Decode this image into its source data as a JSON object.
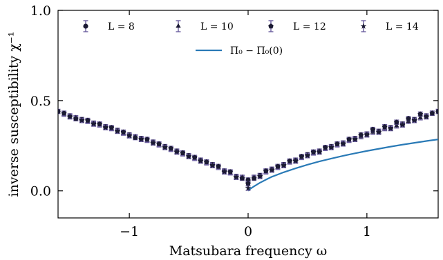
{
  "chart_data": {
    "type": "scatter",
    "xlabel": "Matsubara frequency ω",
    "ylabel": "inverse susceptibility χ⁻¹",
    "xlim": [
      -1.6,
      1.6
    ],
    "ylim": [
      -0.15,
      1.0
    ],
    "x_ticks": [
      {
        "value": -1,
        "label": "−1"
      },
      {
        "value": 0,
        "label": "0"
      },
      {
        "value": 1,
        "label": "1"
      }
    ],
    "y_ticks": [
      {
        "value": 0.0,
        "label": "0.0"
      },
      {
        "value": 0.5,
        "label": "0.5"
      },
      {
        "value": 1.0,
        "label": "1.0"
      }
    ],
    "grid": false,
    "legend_placement": "top",
    "colors": {
      "markers": "#1b1a33",
      "errorbars": "#6a5c9e",
      "line": "#2a7ab6"
    },
    "series": [
      {
        "name": "L = 8",
        "marker": "circle",
        "x": [
          -1.6,
          -1.5,
          -1.4,
          -1.3,
          -1.2,
          -1.1,
          -1.0,
          -0.9,
          -0.8,
          -0.7,
          -0.6,
          -0.5,
          -0.4,
          -0.3,
          -0.2,
          -0.1,
          0.0,
          0.1,
          0.2,
          0.3,
          0.4,
          0.5,
          0.6,
          0.7,
          0.8,
          0.9,
          1.0,
          1.1,
          1.2,
          1.3,
          1.4,
          1.5,
          1.6
        ],
        "y": [
          0.44,
          0.415,
          0.395,
          0.375,
          0.355,
          0.335,
          0.31,
          0.29,
          0.27,
          0.245,
          0.22,
          0.195,
          0.17,
          0.145,
          0.11,
          0.08,
          0.06,
          0.085,
          0.12,
          0.145,
          0.17,
          0.2,
          0.22,
          0.245,
          0.265,
          0.29,
          0.315,
          0.33,
          0.35,
          0.37,
          0.395,
          0.415,
          0.44
        ],
        "err": 0.012
      },
      {
        "name": "L = 10",
        "marker": "triangle",
        "x": [
          -1.55,
          -1.45,
          -1.35,
          -1.25,
          -1.15,
          -1.05,
          -0.95,
          -0.85,
          -0.75,
          -0.65,
          -0.55,
          -0.45,
          -0.35,
          -0.25,
          -0.15,
          -0.05,
          0.05,
          0.15,
          0.25,
          0.35,
          0.45,
          0.55,
          0.65,
          0.75,
          0.85,
          0.95,
          1.05,
          1.15,
          1.25,
          1.35,
          1.45,
          1.55
        ],
        "y": [
          0.425,
          0.405,
          0.385,
          0.365,
          0.345,
          0.32,
          0.3,
          0.28,
          0.255,
          0.23,
          0.205,
          0.18,
          0.155,
          0.13,
          0.1,
          0.075,
          0.075,
          0.105,
          0.13,
          0.16,
          0.185,
          0.21,
          0.235,
          0.255,
          0.28,
          0.3,
          0.325,
          0.345,
          0.36,
          0.385,
          0.405,
          0.43
        ],
        "err": 0.012
      },
      {
        "name": "L = 12",
        "marker": "pentagon",
        "x": [
          -1.55,
          -1.45,
          -1.35,
          -1.25,
          -1.15,
          -1.05,
          -0.95,
          -0.85,
          -0.75,
          -0.65,
          -0.55,
          -0.45,
          -0.35,
          -0.25,
          -0.15,
          -0.05,
          0.0,
          0.05,
          0.15,
          0.25,
          0.35,
          0.45,
          0.55,
          0.65,
          0.75,
          0.85,
          0.95,
          1.05,
          1.15,
          1.25,
          1.35,
          1.45,
          1.55
        ],
        "y": [
          0.43,
          0.4,
          0.39,
          0.37,
          0.35,
          0.325,
          0.295,
          0.285,
          0.26,
          0.235,
          0.21,
          0.185,
          0.16,
          0.135,
          0.105,
          0.07,
          0.04,
          0.07,
          0.11,
          0.135,
          0.165,
          0.19,
          0.215,
          0.24,
          0.26,
          0.285,
          0.31,
          0.34,
          0.355,
          0.38,
          0.4,
          0.425,
          0.43
        ],
        "err": 0.012
      },
      {
        "name": "L = 14",
        "marker": "star",
        "x": [
          -1.5,
          -1.4,
          -1.3,
          -1.2,
          -1.1,
          -1.0,
          -0.9,
          -0.8,
          -0.7,
          -0.6,
          -0.5,
          -0.4,
          -0.3,
          -0.2,
          -0.1,
          0.0,
          0.1,
          0.2,
          0.3,
          0.4,
          0.5,
          0.6,
          0.7,
          0.8,
          0.9,
          1.0,
          1.1,
          1.2,
          1.3,
          1.4,
          1.5
        ],
        "y": [
          0.41,
          0.39,
          0.37,
          0.35,
          0.33,
          0.305,
          0.285,
          0.265,
          0.24,
          0.215,
          0.19,
          0.165,
          0.14,
          0.105,
          0.075,
          0.015,
          0.08,
          0.115,
          0.14,
          0.165,
          0.195,
          0.215,
          0.24,
          0.26,
          0.285,
          0.31,
          0.325,
          0.345,
          0.365,
          0.39,
          0.41
        ],
        "err": 0.012
      }
    ],
    "lines": [
      {
        "name": "Π₀ − Π₀(0)",
        "x": [
          0.0,
          0.02,
          0.05,
          0.1,
          0.15,
          0.2,
          0.3,
          0.4,
          0.5,
          0.6,
          0.7,
          0.8,
          0.9,
          1.0,
          1.1,
          1.2,
          1.3,
          1.4,
          1.5,
          1.6
        ],
        "y": [
          0.0,
          0.012,
          0.025,
          0.045,
          0.062,
          0.078,
          0.103,
          0.125,
          0.145,
          0.163,
          0.179,
          0.194,
          0.208,
          0.221,
          0.233,
          0.245,
          0.256,
          0.266,
          0.276,
          0.285
        ]
      }
    ]
  }
}
